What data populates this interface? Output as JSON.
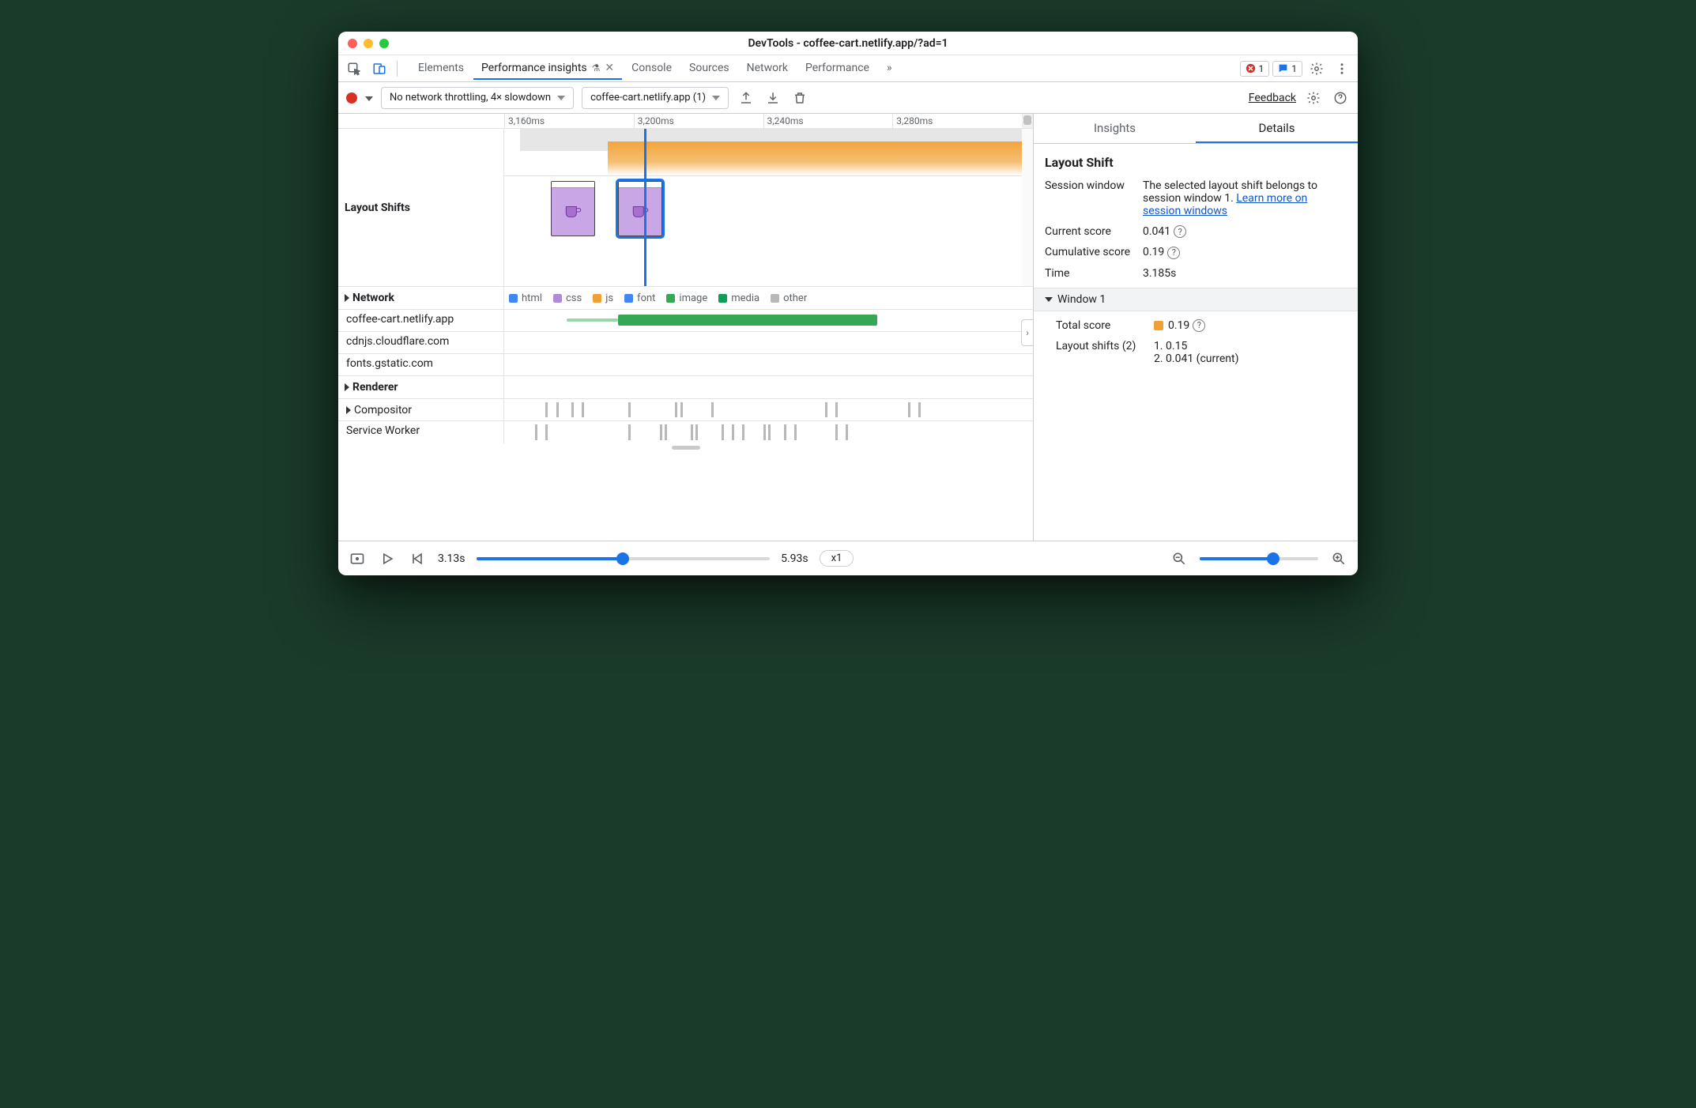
{
  "colors": {
    "blue": "#1a73e8",
    "link": "#1155cc",
    "orange": "#f0a133",
    "red": "#d93025",
    "green_image": "#34a853",
    "green_image_light": "#9ad6a8",
    "html": "#4285f4",
    "css": "#b08cd6",
    "js": "#f0a133",
    "font": "#4285f4",
    "media": "#0f9d58",
    "other": "#b8b8b8"
  },
  "titlebar": {
    "title": "DevTools - coffee-cart.netlify.app/?ad=1"
  },
  "top_tabs": {
    "items": [
      {
        "label": "Elements"
      },
      {
        "label": "Performance insights",
        "active": true,
        "has_flask": true,
        "closable": true
      },
      {
        "label": "Console"
      },
      {
        "label": "Sources"
      },
      {
        "label": "Network"
      },
      {
        "label": "Performance"
      }
    ],
    "overflow_glyph": "»",
    "error_badge": "1",
    "message_badge": "1"
  },
  "toolbar": {
    "throttling_label": "No network throttling, 4× slowdown",
    "target_label": "coffee-cart.netlify.app (1)",
    "feedback": "Feedback"
  },
  "ruler": {
    "ticks": [
      "3,160ms",
      "3,200ms",
      "3,240ms",
      "3,280ms"
    ]
  },
  "layout_shifts": {
    "label": "Layout Shifts",
    "grey_block": {
      "left_pct": 3,
      "width_pct": 97
    },
    "orange_block": {
      "left_pct": 20,
      "width_pct": 80
    },
    "playhead_pct": 27,
    "thumbs": [
      {
        "left_pct": 9,
        "selected": false
      },
      {
        "left_pct": 22,
        "selected": true
      }
    ]
  },
  "network": {
    "label": "Network",
    "legend": [
      {
        "name": "html",
        "color": "#4285f4"
      },
      {
        "name": "css",
        "color": "#b08cd6"
      },
      {
        "name": "js",
        "color": "#f0a133"
      },
      {
        "name": "font",
        "color": "#4285f4"
      },
      {
        "name": "image",
        "color": "#34a853"
      },
      {
        "name": "media",
        "color": "#0f9d58"
      },
      {
        "name": "other",
        "color": "#b8b8b8"
      }
    ],
    "domains": [
      {
        "name": "coffee-cart.netlify.app",
        "bars": [
          {
            "type": "thin",
            "left_pct": 12,
            "width_pct": 10,
            "color": "#9ad6a8"
          },
          {
            "type": "bar",
            "left_pct": 22,
            "width_pct": 50,
            "color": "#34a853"
          }
        ]
      },
      {
        "name": "cdnjs.cloudflare.com",
        "bars": []
      },
      {
        "name": "fonts.gstatic.com",
        "bars": []
      }
    ]
  },
  "renderer": {
    "label": "Renderer"
  },
  "compositor": {
    "label": "Compositor",
    "ticks_pct": [
      8,
      10,
      13,
      15,
      24,
      33,
      34,
      40,
      62,
      64,
      78,
      80
    ]
  },
  "service_worker": {
    "label": "Service Worker",
    "ticks_pct": [
      6,
      8,
      24,
      30,
      31,
      36,
      37,
      42,
      44,
      46,
      50,
      51,
      54,
      56,
      64,
      66
    ]
  },
  "right": {
    "tabs": {
      "insights": "Insights",
      "details": "Details"
    },
    "heading": "Layout Shift",
    "session_window": {
      "label": "Session window",
      "text_prefix": "The selected layout shift belongs to session window 1. ",
      "link": "Learn more on session windows"
    },
    "current_score": {
      "label": "Current score",
      "value": "0.041"
    },
    "cumulative_score": {
      "label": "Cumulative score",
      "value": "0.19"
    },
    "time": {
      "label": "Time",
      "value": "3.185s"
    },
    "window1": {
      "label": "Window 1",
      "total_score": {
        "label": "Total score",
        "value": "0.19"
      },
      "shifts": {
        "label": "Layout shifts (2)",
        "items": [
          "1. 0.15",
          "2. 0.041 (current)"
        ]
      }
    }
  },
  "footer": {
    "start": "3.13s",
    "end": "5.93s",
    "range_fill_pct": 50,
    "speed": "x1",
    "zoom_fill_pct": 62
  }
}
